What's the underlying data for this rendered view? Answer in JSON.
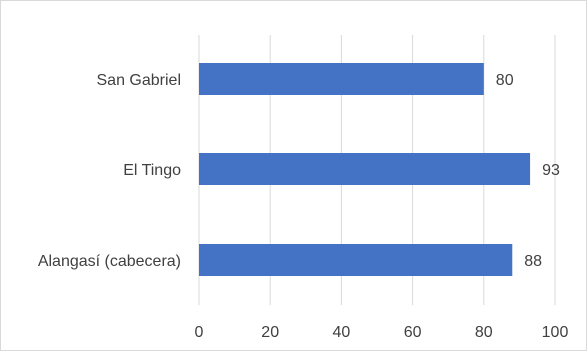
{
  "chart_data": {
    "type": "bar",
    "orientation": "horizontal",
    "categories": [
      "San Gabriel",
      "El Tingo",
      "Alangasí (cabecera)"
    ],
    "values": [
      80,
      93,
      88
    ],
    "xlim": [
      0,
      100
    ],
    "xticks": [
      "0",
      "20",
      "40",
      "60",
      "80",
      "100"
    ],
    "tick_values": [
      0,
      20,
      40,
      60,
      80,
      100
    ],
    "data_labels": [
      "80",
      "93",
      "88"
    ],
    "grid": "vertical",
    "bar_color": "#4472c4",
    "grid_color": "#d9d9d9",
    "title": "",
    "xlabel": "",
    "ylabel": ""
  }
}
